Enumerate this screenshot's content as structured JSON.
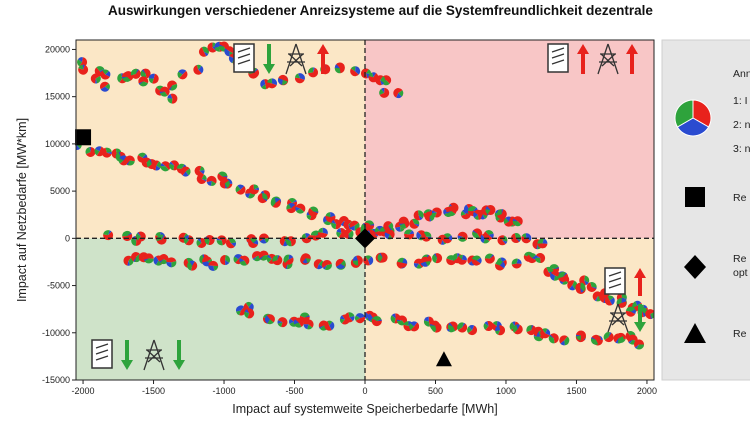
{
  "title": "Auswirkungen verschiedener Anreizsysteme auf die Systemfreundlichkeit dezentrale",
  "chart_data": {
    "type": "scatter",
    "title": "Auswirkungen verschiedener Anreizsysteme auf die Systemfreundlichkeit dezentrale",
    "xlabel": "Impact auf systemweite Speicherbedarfe [MWh]",
    "ylabel": "Impact auf Netzbedarfe [MW*km]",
    "xlim": [
      -2050,
      2050
    ],
    "ylim": [
      -15000,
      21000
    ],
    "xticks": [
      -2000,
      -1500,
      -1000,
      -500,
      0,
      500,
      1000,
      1500,
      2000
    ],
    "yticks": [
      -15000,
      -10000,
      -5000,
      0,
      5000,
      10000,
      15000,
      20000
    ],
    "quadrant_colors": {
      "top_left": "#fbe7c6",
      "top_right": "#f8c6c6",
      "bottom_left": "#cfe3c9",
      "bottom_right": "#fbe7c6"
    },
    "pie_colors": [
      "#e8221c",
      "#2ea33c",
      "#2a4bd0"
    ],
    "special_markers": [
      {
        "shape": "square",
        "x": -2000,
        "y": 10700
      },
      {
        "shape": "diamond",
        "x": 0,
        "y": 0
      },
      {
        "shape": "triangle",
        "x": 560,
        "y": -12800
      }
    ],
    "clusters": [
      {
        "id": "upper-left-band",
        "x": [
          -2000,
          -1750,
          -1500,
          -1250,
          -1000,
          -750,
          -500,
          -250,
          0,
          250
        ],
        "y": [
          9500,
          8500,
          8000,
          7000,
          6000,
          4500,
          3000,
          2000,
          1000,
          500
        ]
      },
      {
        "id": "upper-left-outliers",
        "x": [
          -2000,
          -1800,
          -1600,
          -1400,
          -1100,
          -900,
          -700,
          -300,
          100,
          230
        ],
        "y": [
          18500,
          16500,
          17500,
          15000,
          20500,
          19000,
          16000,
          18000,
          17500,
          14500
        ]
      },
      {
        "id": "center-row",
        "x": [
          -1800,
          -1400,
          -1000,
          -600,
          -200,
          200,
          600,
          1000,
          1300
        ],
        "y": [
          0,
          -200,
          -300,
          -100,
          200,
          300,
          200,
          0,
          -1000
        ]
      },
      {
        "id": "lower-row",
        "x": [
          -1700,
          -1400,
          -1100,
          -800,
          -500,
          -200,
          100,
          400,
          700,
          1000,
          1300
        ],
        "y": [
          -2000,
          -2500,
          -2600,
          -2200,
          -2300,
          -2400,
          -2200,
          -2400,
          -2300,
          -2500,
          -2000
        ]
      },
      {
        "id": "bottom-band",
        "x": [
          -900,
          -600,
          -300,
          0,
          300,
          600,
          900,
          1200,
          1500,
          1800,
          2000
        ],
        "y": [
          -7500,
          -8500,
          -9000,
          -8500,
          -9000,
          -9000,
          -9500,
          -10000,
          -10500,
          -10500,
          -11000
        ]
      },
      {
        "id": "upper-right-arc",
        "x": [
          200,
          400,
          600,
          800,
          950,
          1100
        ],
        "y": [
          1000,
          2000,
          2800,
          2800,
          2500,
          1500
        ]
      },
      {
        "id": "lower-right-tail",
        "x": [
          1300,
          1450,
          1600,
          1750,
          1900,
          2000
        ],
        "y": [
          -3000,
          -4500,
          -5500,
          -6500,
          -7500,
          -8500
        ]
      }
    ]
  },
  "legend": {
    "header": "Ann",
    "pie_items": [
      "1: I",
      "2: n",
      "3: n"
    ],
    "marker_labels": [
      "Re",
      "Re",
      "opt",
      "Re"
    ]
  }
}
